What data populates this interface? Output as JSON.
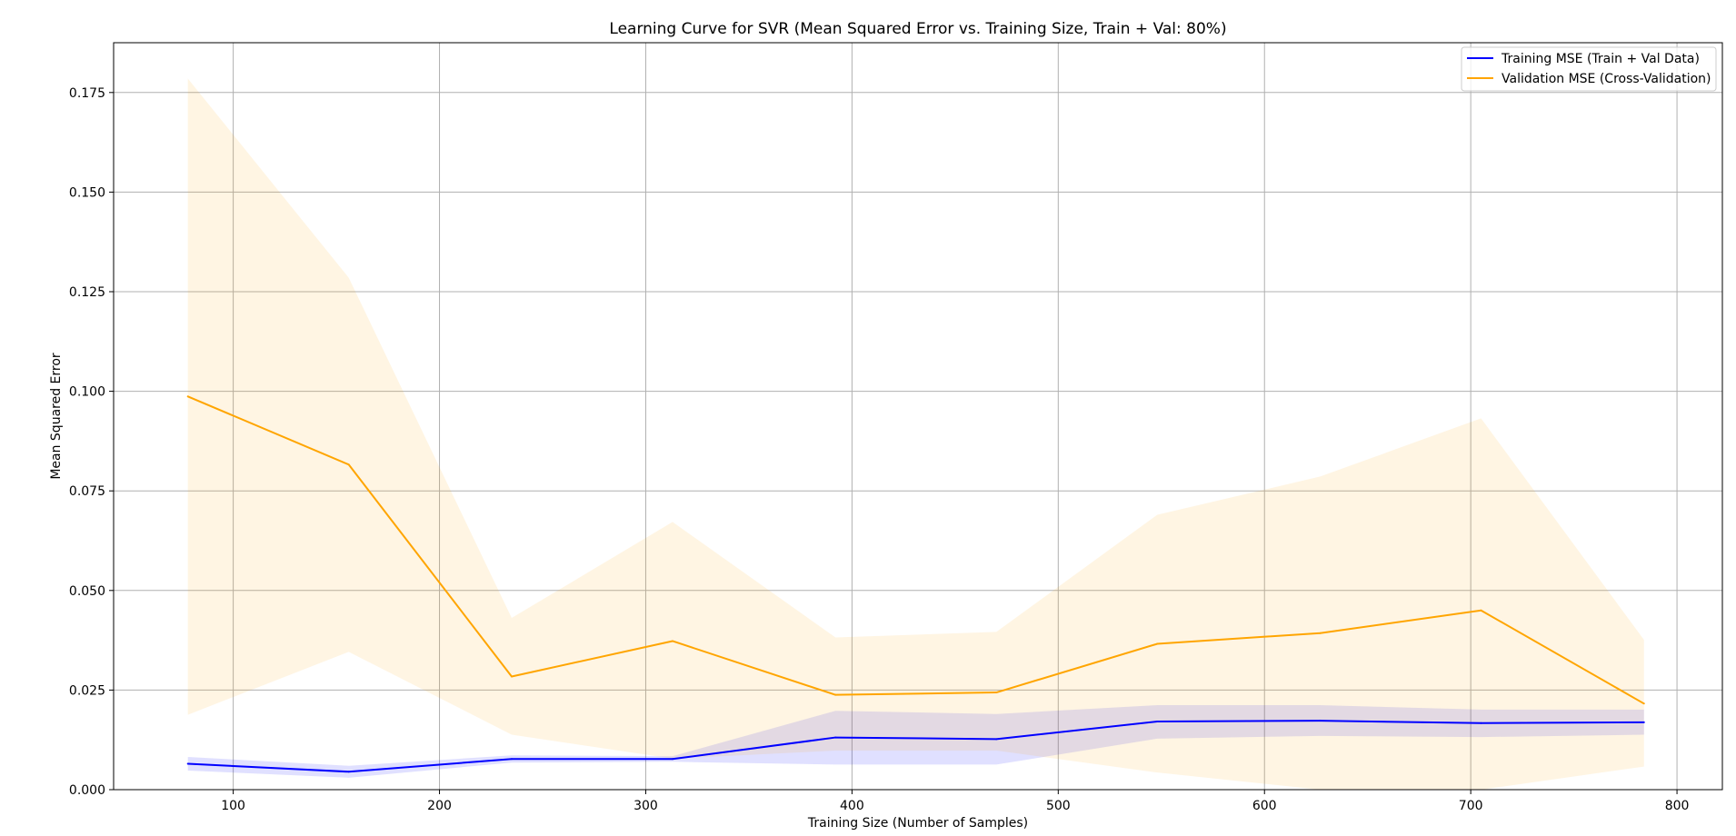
{
  "chart_data": {
    "type": "line",
    "title": "Learning Curve for SVR (Mean Squared Error vs. Training Size, Train + Val: 80%)",
    "xlabel": "Training Size (Number of Samples)",
    "ylabel": "Mean Squared Error",
    "xlim": [
      42,
      822
    ],
    "ylim": [
      0,
      0.1875
    ],
    "xticks": [
      100,
      200,
      300,
      400,
      500,
      600,
      700,
      800
    ],
    "xtick_labels": [
      "100",
      "200",
      "300",
      "400",
      "500",
      "600",
      "700",
      "800"
    ],
    "yticks": [
      0,
      0.025,
      0.05,
      0.075,
      0.1,
      0.125,
      0.15,
      0.175
    ],
    "ytick_labels": [
      "0.000",
      "0.025",
      "0.050",
      "0.075",
      "0.100",
      "0.125",
      "0.150",
      "0.175"
    ],
    "grid": true,
    "legend_position": "top-right",
    "x": [
      78,
      156,
      235,
      313,
      392,
      470,
      548,
      627,
      705,
      784
    ],
    "series": [
      {
        "name": "Training MSE (Train + Val Data)",
        "color": "#0000ff",
        "values": [
          0.0065,
          0.0045,
          0.0077,
          0.0077,
          0.0131,
          0.0127,
          0.0171,
          0.0173,
          0.0167,
          0.0169
        ],
        "band_lower": [
          0.0048,
          0.003,
          0.0068,
          0.007,
          0.0063,
          0.0063,
          0.0128,
          0.0135,
          0.0132,
          0.0138
        ],
        "band_upper": [
          0.0082,
          0.006,
          0.0086,
          0.0084,
          0.0198,
          0.019,
          0.0212,
          0.0212,
          0.0201,
          0.0201
        ],
        "band_color": "#0000ff",
        "band_opacity": 0.12
      },
      {
        "name": "Validation MSE (Cross-Validation)",
        "color": "#ffa500",
        "values": [
          0.0987,
          0.0816,
          0.0284,
          0.0373,
          0.0238,
          0.0244,
          0.0366,
          0.0393,
          0.045,
          0.0216
        ],
        "band_lower": [
          0.0188,
          0.0346,
          0.0138,
          0.0078,
          0.0098,
          0.0098,
          0.0043,
          0.0,
          0.0,
          0.0058
        ],
        "band_upper": [
          0.1785,
          0.1285,
          0.0431,
          0.0672,
          0.0382,
          0.0396,
          0.069,
          0.0786,
          0.0932,
          0.0376
        ],
        "band_color": "#ffa500",
        "band_opacity": 0.11
      }
    ]
  }
}
